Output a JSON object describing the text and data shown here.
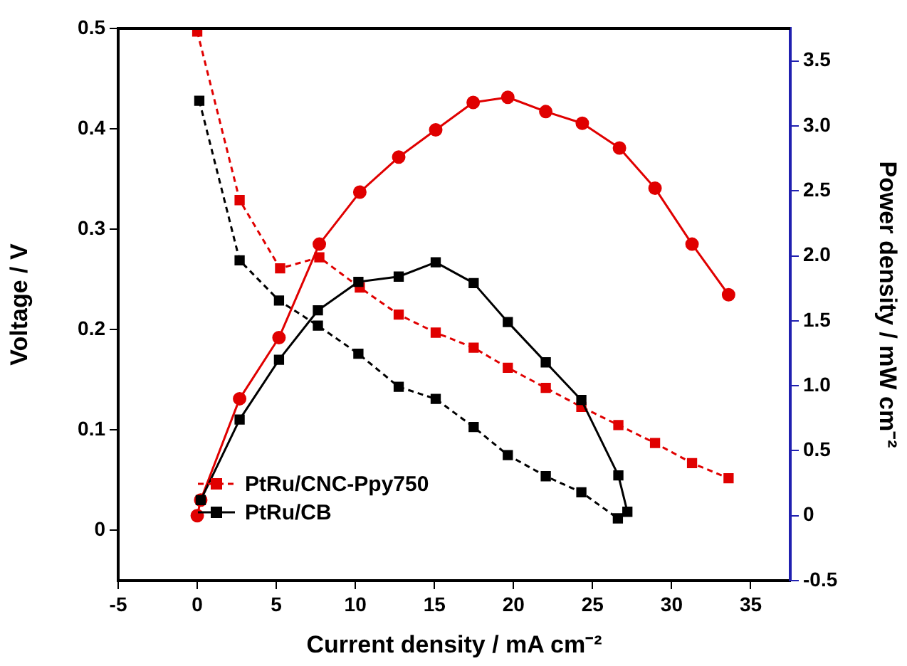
{
  "chart_data": {
    "type": "line",
    "xlabel": "Current density / mA cm⁻²",
    "ylabel": "Voltage / V",
    "y2label": "Power density / mW cm⁻²",
    "xlim": [
      -5,
      37.5
    ],
    "xticks": [
      -5,
      0,
      5,
      10,
      15,
      20,
      25,
      30,
      35
    ],
    "ylim": [
      -0.05,
      0.5
    ],
    "yticks": [
      0,
      0.1,
      0.2,
      0.3,
      0.4,
      0.5
    ],
    "y2lim": [
      -0.5,
      3.75
    ],
    "y2ticks": [
      {
        "value": -0.5,
        "label": "-0.5"
      },
      0,
      {
        "value": 0.5,
        "label": "0.5"
      },
      {
        "value": 1,
        "label": "1.0"
      },
      {
        "value": 1.5,
        "label": "1.5"
      },
      {
        "value": 2,
        "label": "2.0"
      },
      {
        "value": 2.5,
        "label": "2.5"
      },
      {
        "value": 3,
        "label": "3.0"
      },
      {
        "value": 3.5,
        "label": "3.5"
      }
    ],
    "legend": "bottom left",
    "grid": false,
    "series": [
      {
        "name": "PtRu/CNC-Ppy750",
        "color": "#e00000",
        "axis": "y",
        "marker": "square",
        "line_style": "dashed",
        "x": [
          0,
          2.68,
          5.24,
          7.72,
          10.28,
          12.74,
          15.08,
          17.48,
          19.64,
          22.04,
          24.29,
          26.63,
          28.95,
          31.29,
          33.6
        ],
        "values": [
          0.497,
          0.329,
          0.261,
          0.272,
          0.242,
          0.215,
          0.197,
          0.182,
          0.162,
          0.142,
          0.123,
          0.105,
          0.087,
          0.067,
          0.052
        ]
      },
      {
        "color": "#000000",
        "axis": "y",
        "marker": "square",
        "line_style": "dashed",
        "x": [
          0.13,
          2.68,
          5.17,
          7.63,
          10.19,
          12.74,
          15.08,
          17.48,
          19.64,
          22.04,
          24.29,
          26.6
        ],
        "values": [
          0.428,
          0.269,
          0.229,
          0.204,
          0.176,
          0.143,
          0.131,
          0.103,
          0.075,
          0.054,
          0.038,
          0.012
        ]
      },
      {
        "color": "#e00000",
        "axis": "y2",
        "marker": "circle",
        "line_style": "solid",
        "x": [
          0,
          0.22,
          2.68,
          5.17,
          7.72,
          10.28,
          12.74,
          15.08,
          17.45,
          19.64,
          22.04,
          24.35,
          26.7,
          28.95,
          31.29,
          33.6
        ],
        "values": [
          0.0,
          0.12,
          0.9,
          1.37,
          2.09,
          2.49,
          2.76,
          2.97,
          3.18,
          3.22,
          3.11,
          3.02,
          2.83,
          2.52,
          2.09,
          1.7
        ]
      },
      {
        "name": "PtRu/CB",
        "color": "#000000",
        "axis": "y2",
        "marker": "square",
        "line_style": "solid",
        "x": [
          0.22,
          2.68,
          5.17,
          7.63,
          10.19,
          12.74,
          15.08,
          17.48,
          19.64,
          22.04,
          24.29,
          26.63,
          27.2
        ],
        "values": [
          0.12,
          0.74,
          1.2,
          1.58,
          1.8,
          1.84,
          1.95,
          1.79,
          1.49,
          1.18,
          0.89,
          0.31,
          0.03
        ]
      }
    ]
  }
}
